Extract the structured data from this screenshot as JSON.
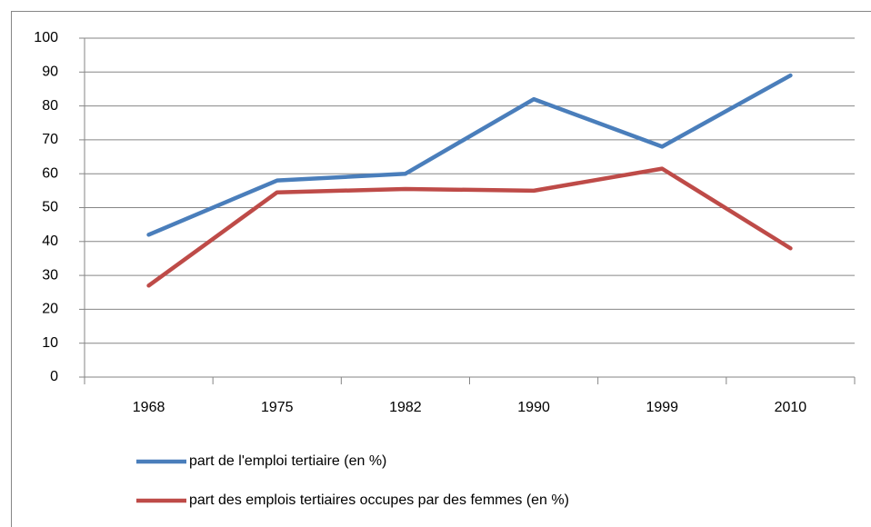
{
  "chart_data": {
    "type": "line",
    "categories": [
      "1968",
      "1975",
      "1982",
      "1990",
      "1999",
      "2010"
    ],
    "series": [
      {
        "name": "part de l'emploi tertiaire (en %)",
        "color": "#4a7ebb",
        "values": [
          42,
          58,
          60,
          82,
          68,
          89
        ]
      },
      {
        "name": "part des emplois tertiaires occupes par des femmes (en %)",
        "color": "#be4b48",
        "values": [
          27,
          54.5,
          55.5,
          55,
          61.5,
          38
        ]
      }
    ],
    "ylim": [
      0,
      100
    ],
    "yticks": [
      0,
      10,
      20,
      30,
      40,
      50,
      60,
      70,
      80,
      90,
      100
    ],
    "grid": true,
    "legend": "bottom"
  }
}
